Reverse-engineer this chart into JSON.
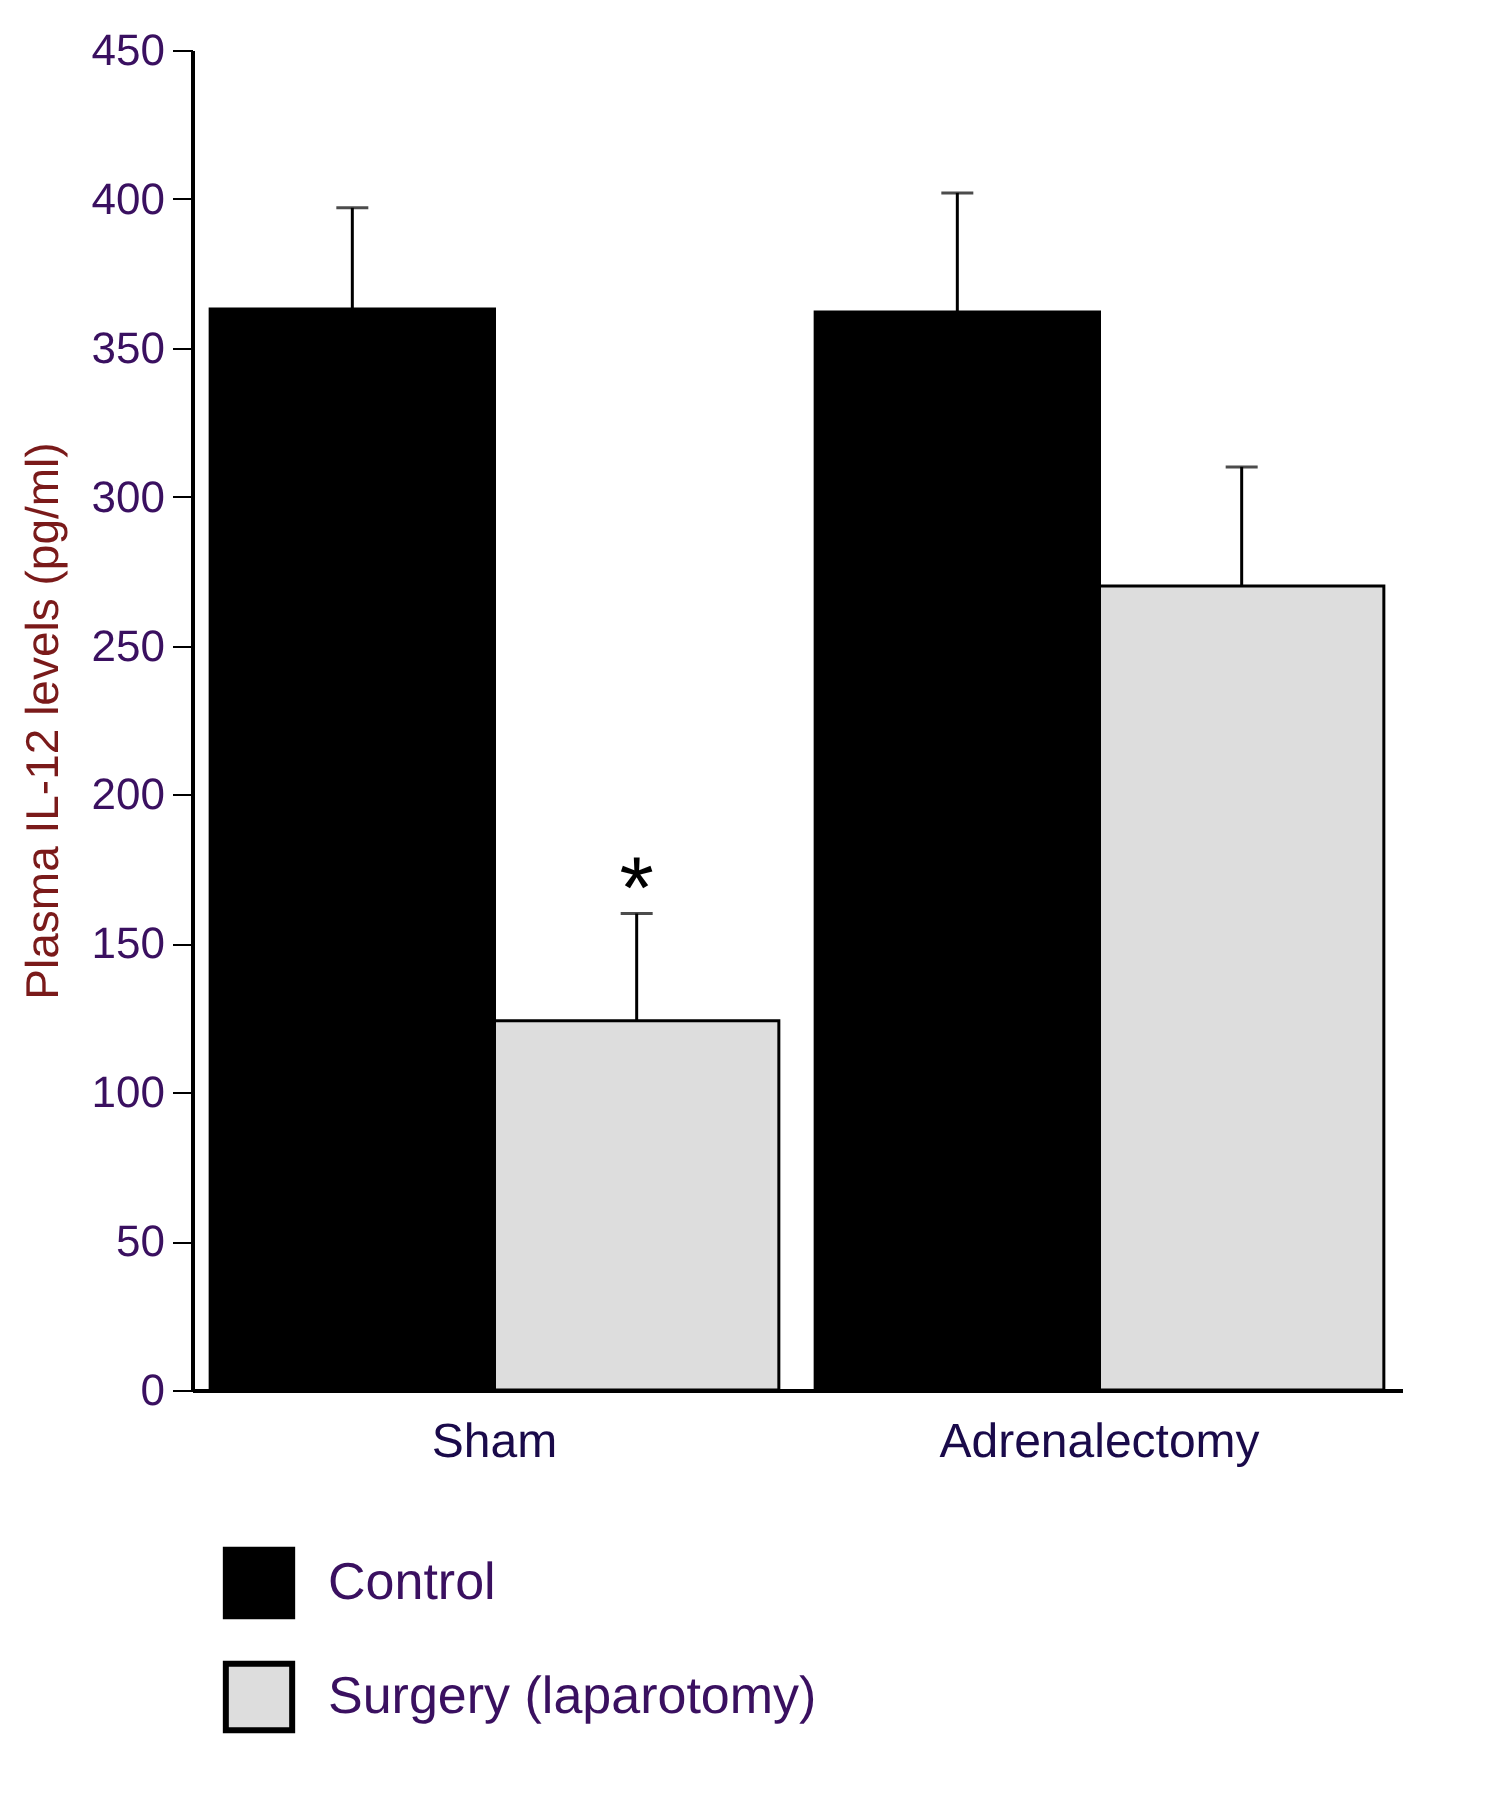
{
  "chart_data": {
    "type": "bar",
    "ylabel": "Plasma IL-12 levels (pg/ml)",
    "categories": [
      "Sham",
      "Adrenalectomy"
    ],
    "series": [
      {
        "name": "Control",
        "color": "#000000",
        "values": [
          363,
          362
        ],
        "errors": [
          [
            363,
            397
          ],
          [
            362,
            402
          ]
        ]
      },
      {
        "name": "Surgery (laparotomy)",
        "color": "#dddddd",
        "values": [
          124,
          270
        ],
        "errors": [
          [
            124,
            160
          ],
          [
            270,
            310
          ]
        ]
      }
    ],
    "ylim": [
      0,
      450
    ],
    "yticks": [
      0,
      50,
      100,
      150,
      200,
      250,
      300,
      350,
      400,
      450
    ],
    "grid": false,
    "legend": "bottom",
    "annotations": [
      {
        "text": "*",
        "x": "Sham",
        "y": 170
      }
    ]
  }
}
